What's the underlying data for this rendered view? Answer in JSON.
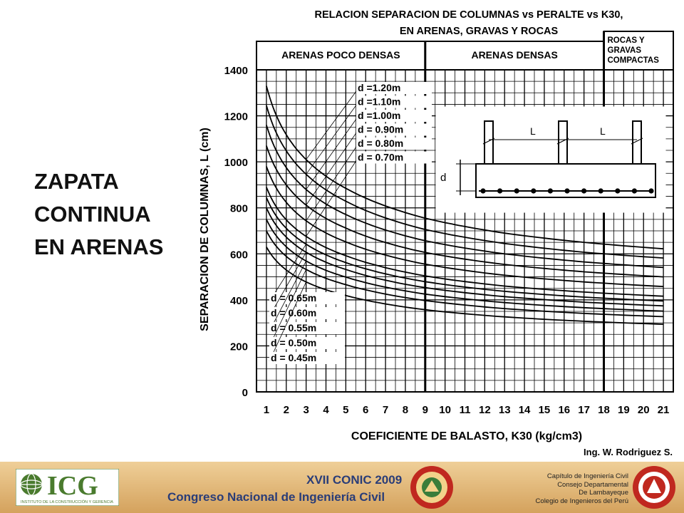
{
  "slide": {
    "title_lines": [
      "ZAPATA",
      "CONTINUA",
      "EN ARENAS"
    ]
  },
  "chart_data": {
    "type": "line",
    "title_lines": [
      "RELACION SEPARACION DE COLUMNAS vs PERALTE vs K30,",
      "EN ARENAS, GRAVAS Y ROCAS"
    ],
    "xlabel": "COEFICIENTE DE BALASTO, K30 (kg/cm3)",
    "ylabel": "SEPARACION DE COLUMNAS, L (cm)",
    "xlim": [
      0.5,
      21.5
    ],
    "ylim": [
      0,
      1400
    ],
    "x_ticks": [
      1,
      2,
      3,
      4,
      5,
      6,
      7,
      8,
      9,
      10,
      11,
      12,
      13,
      14,
      15,
      16,
      17,
      18,
      19,
      20,
      21
    ],
    "y_ticks": [
      0,
      200,
      400,
      600,
      800,
      1000,
      1200,
      1400
    ],
    "grid": true,
    "soil_zones": [
      {
        "label": "ARENAS POCO DENSAS",
        "from": 0.5,
        "to": 9
      },
      {
        "label": "ARENAS DENSAS",
        "from": 9,
        "to": 18
      },
      {
        "label_lines": [
          "ROCAS Y",
          "GRAVAS",
          "COMPACTAS"
        ],
        "from": 18,
        "to": 21.5
      }
    ],
    "series": [
      {
        "name": "d =1.20m",
        "x": [
          1,
          2,
          3,
          5,
          9,
          13,
          17,
          21
        ],
        "values": [
          1330,
          1118,
          1010,
          885,
          755,
          690,
          650,
          622
        ]
      },
      {
        "name": "d =1.10m",
        "x": [
          1,
          2,
          3,
          5,
          9,
          13,
          17,
          21
        ],
        "values": [
          1245,
          1048,
          946,
          829,
          706,
          645,
          607,
          582
        ]
      },
      {
        "name": "d =1.00m",
        "x": [
          1,
          2,
          3,
          5,
          9,
          13,
          17,
          21
        ],
        "values": [
          1160,
          975,
          880,
          771,
          657,
          600,
          565,
          541
        ]
      },
      {
        "name": "d = 0.90m",
        "x": [
          1,
          2,
          3,
          5,
          9,
          13,
          17,
          21
        ],
        "values": [
          1070,
          900,
          812,
          712,
          606,
          554,
          522,
          500
        ]
      },
      {
        "name": "d = 0.80m",
        "x": [
          1,
          2,
          3,
          5,
          9,
          13,
          17,
          21
        ],
        "values": [
          980,
          824,
          744,
          652,
          555,
          507,
          478,
          458
        ]
      },
      {
        "name": "d = 0.70m",
        "x": [
          1,
          2,
          3,
          5,
          9,
          13,
          17,
          21
        ],
        "values": [
          890,
          748,
          676,
          592,
          504,
          460,
          434,
          416
        ]
      },
      {
        "name": "d = 0.65m",
        "x": [
          1,
          2,
          3,
          5,
          9,
          13,
          17,
          21
        ],
        "values": [
          845,
          711,
          642,
          562,
          479,
          437,
          412,
          395
        ]
      },
      {
        "name": "d = 0.60m",
        "x": [
          1,
          2,
          3,
          5,
          9,
          13,
          17,
          21
        ],
        "values": [
          800,
          673,
          607,
          532,
          453,
          414,
          390,
          374
        ]
      },
      {
        "name": "d = 0.55m",
        "x": [
          1,
          2,
          3,
          5,
          9,
          13,
          17,
          21
        ],
        "values": [
          750,
          631,
          569,
          499,
          425,
          388,
          366,
          351
        ]
      },
      {
        "name": "d = 0.50m",
        "x": [
          1,
          2,
          3,
          5,
          9,
          13,
          17,
          21
        ],
        "values": [
          700,
          589,
          532,
          466,
          397,
          362,
          341,
          327
        ]
      },
      {
        "name": "d = 0.45m",
        "x": [
          1,
          2,
          3,
          5,
          9,
          13,
          17,
          21
        ],
        "values": [
          630,
          530,
          478,
          419,
          357,
          326,
          307,
          294
        ]
      }
    ],
    "inset": {
      "span_label": "L",
      "depth_label": "d"
    },
    "author": "Ing. W. Rodriguez S."
  },
  "footer": {
    "logo_text": "ICG",
    "logo_subtext": "INSTITUTO DE LA CONSTRUCCIÓN Y GERENCIA",
    "congress_edition": "XVII CONIC 2009",
    "congress_name": "Congreso Nacional de Ingeniería Civil",
    "chapter_lines": [
      "Capítulo de Ingeniería Civil",
      "Consejo Departamental",
      "De Lambayeque",
      "Colegio de Ingenieros del Perú"
    ]
  },
  "colors": {
    "footer_band": "#e3b877",
    "footer_text": "#2a3d78",
    "logo_green": "#4a7b2e",
    "seal_red": "#c0281f",
    "grid": "#000000"
  }
}
